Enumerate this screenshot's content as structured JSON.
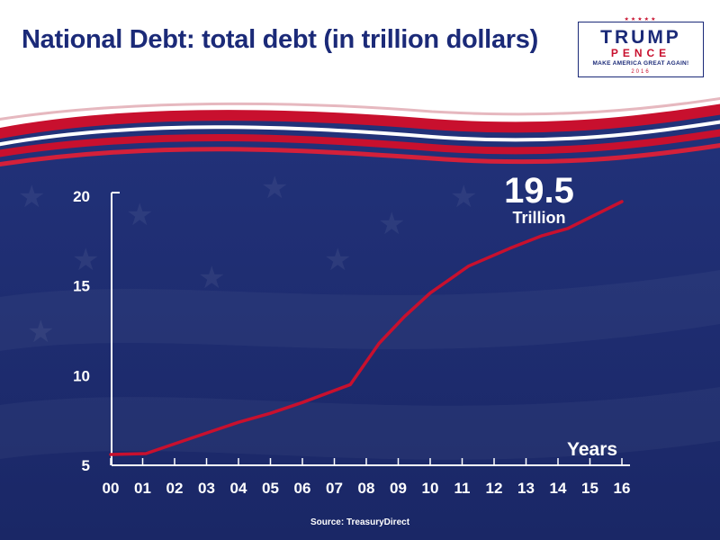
{
  "title": "National Debt: total debt (in trillion dollars)",
  "logo": {
    "line1": "TRUMP",
    "line2": "PENCE",
    "line3": "MAKE AMERICA GREAT AGAIN!",
    "line4": "2016",
    "stars": "★★★★★"
  },
  "annotation": {
    "value": "19.5",
    "unit": "Trillion"
  },
  "source": "Source: TreasuryDirect",
  "colors": {
    "title": "#1b2a78",
    "background": "#1b2a6e",
    "line": "#c8102e",
    "text": "#ffffff",
    "flag_red": "#c8102e"
  },
  "chart_data": {
    "type": "line",
    "title": "National Debt: total debt (in trillion dollars)",
    "xlabel": "Years",
    "ylabel": "",
    "categories": [
      "00",
      "01",
      "02",
      "03",
      "04",
      "05",
      "06",
      "07",
      "08",
      "09",
      "10",
      "11",
      "12",
      "13",
      "14",
      "15",
      "16"
    ],
    "ylim": [
      5,
      20
    ],
    "yticks": [
      "5",
      "10",
      "15",
      "20"
    ],
    "grid": false,
    "series": [
      {
        "name": "",
        "points": [
          {
            "x": 0,
            "y": 5.6
          },
          {
            "x": 1.1,
            "y": 5.65
          },
          {
            "x": 2,
            "y": 6.2
          },
          {
            "x": 3,
            "y": 6.8
          },
          {
            "x": 4,
            "y": 7.4
          },
          {
            "x": 5,
            "y": 7.9
          },
          {
            "x": 6,
            "y": 8.5
          },
          {
            "x": 7.5,
            "y": 9.5
          },
          {
            "x": 8.4,
            "y": 11.8
          },
          {
            "x": 9.2,
            "y": 13.3
          },
          {
            "x": 10,
            "y": 14.6
          },
          {
            "x": 11.2,
            "y": 16.1
          },
          {
            "x": 12.5,
            "y": 17.1
          },
          {
            "x": 13.5,
            "y": 17.8
          },
          {
            "x": 14.3,
            "y": 18.2
          },
          {
            "x": 16,
            "y": 19.7
          }
        ]
      }
    ]
  }
}
